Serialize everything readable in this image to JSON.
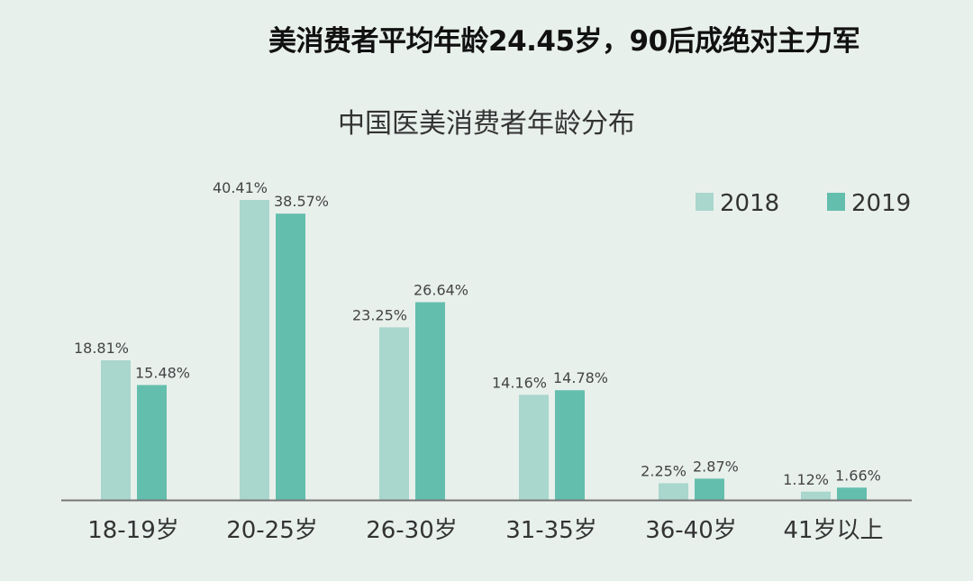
{
  "headline": "美消费者平均年龄24.45岁，90后成绝对主力军",
  "chart_data": {
    "type": "bar",
    "title": "中国医美消费者年龄分布",
    "categories": [
      "18-19岁",
      "20-25岁",
      "26-30岁",
      "31-35岁",
      "36-40岁",
      "41岁以上"
    ],
    "series": [
      {
        "name": "2018",
        "color": "#a9d6cd",
        "values": [
          18.81,
          40.41,
          23.25,
          14.16,
          2.25,
          1.12
        ],
        "labels": [
          "18.81%",
          "40.41%",
          "23.25%",
          "14.16%",
          "2.25%",
          "1.12%"
        ]
      },
      {
        "name": "2019",
        "color": "#64bead",
        "values": [
          15.48,
          38.57,
          26.64,
          14.78,
          2.87,
          1.66
        ],
        "labels": [
          "15.48%",
          "38.57%",
          "26.64%",
          "14.78%",
          "2.87%",
          "1.66%"
        ]
      }
    ],
    "xlabel": "",
    "ylabel": "",
    "ylim": [
      0,
      45
    ],
    "grid": false,
    "legend": "top-right"
  }
}
